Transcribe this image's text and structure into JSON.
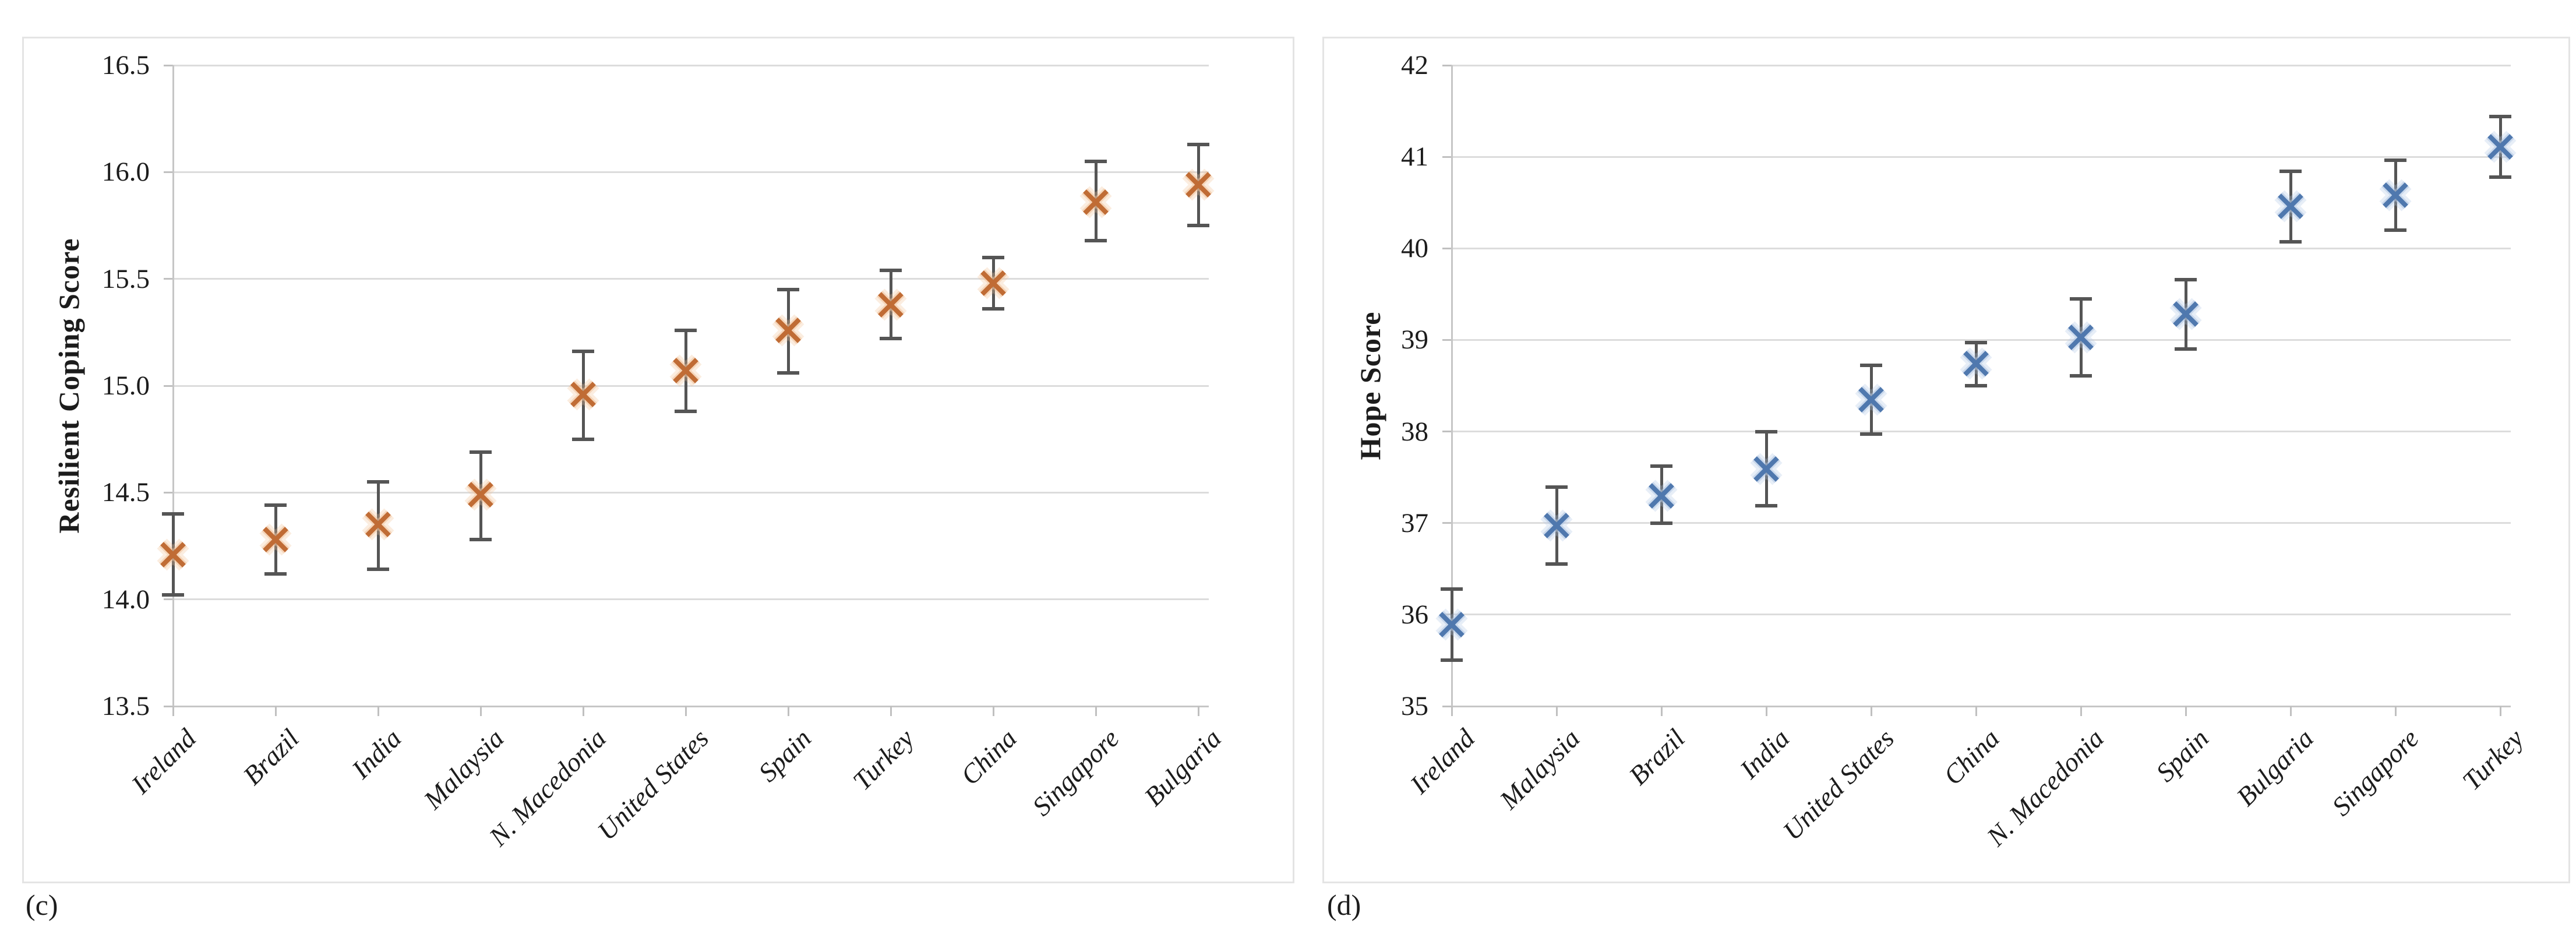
{
  "figure_title": "",
  "style": {
    "background": "#ffffff",
    "gridline_color": "#dcdcdc",
    "axis_color": "#c6c6c6",
    "error_bar_color": "#555555",
    "text_color": "#1c1c1c",
    "panel_border_color": "#e4e4e4"
  },
  "chart_data": [
    {
      "type": "scatter",
      "panel_label": "(c)",
      "title": "",
      "xlabel": "",
      "ylabel": "Resilient Coping Score",
      "legend_position": "none",
      "grid": true,
      "marker_symbol": "x",
      "marker_color": "#c06c35",
      "marker_halo_color": "#f2c49c",
      "error_bars": true,
      "ylim": [
        13.5,
        16.5
      ],
      "y_tick_step": 0.5,
      "y_tick_labels": [
        "16.5",
        "16.0",
        "15.5",
        "15.0",
        "14.5",
        "14.0",
        "13.5"
      ],
      "categories": [
        "Ireland",
        "Brazil",
        "India",
        "Malaysia",
        "N. Macedonia",
        "United States",
        "Spain",
        "Turkey",
        "China",
        "Singapore",
        "Bulgaria"
      ],
      "values": [
        14.21,
        14.28,
        14.35,
        14.49,
        14.96,
        15.07,
        15.26,
        15.38,
        15.48,
        15.86,
        15.94
      ],
      "error_low": [
        14.02,
        14.12,
        14.14,
        14.28,
        14.75,
        14.88,
        15.06,
        15.22,
        15.36,
        15.68,
        15.75
      ],
      "error_high": [
        14.4,
        14.44,
        14.55,
        14.69,
        15.16,
        15.26,
        15.45,
        15.54,
        15.6,
        16.05,
        16.13
      ]
    },
    {
      "type": "scatter",
      "panel_label": "(d)",
      "title": "",
      "xlabel": "",
      "ylabel": "Hope Score",
      "legend_position": "none",
      "grid": true,
      "marker_symbol": "x",
      "marker_color": "#4f78ae",
      "marker_halo_color": "#b3c8e6",
      "error_bars": true,
      "ylim": [
        35,
        42
      ],
      "y_tick_step": 1,
      "y_tick_labels": [
        "42",
        "41",
        "40",
        "39",
        "38",
        "37",
        "36",
        "35"
      ],
      "categories": [
        "Ireland",
        "Malaysia",
        "Brazil",
        "India",
        "United States",
        "China",
        "N. Macedonia",
        "Spain",
        "Bulgaria",
        "Singapore",
        "Turkey"
      ],
      "values": [
        35.89,
        36.97,
        37.3,
        37.59,
        38.35,
        38.74,
        39.03,
        39.28,
        40.46,
        40.58,
        41.11
      ],
      "error_low": [
        35.5,
        36.55,
        37.0,
        37.19,
        37.97,
        38.5,
        38.61,
        38.9,
        40.07,
        40.2,
        40.78
      ],
      "error_high": [
        36.28,
        37.39,
        37.62,
        38.0,
        38.72,
        38.97,
        39.45,
        39.66,
        40.84,
        40.96,
        41.44
      ]
    }
  ]
}
